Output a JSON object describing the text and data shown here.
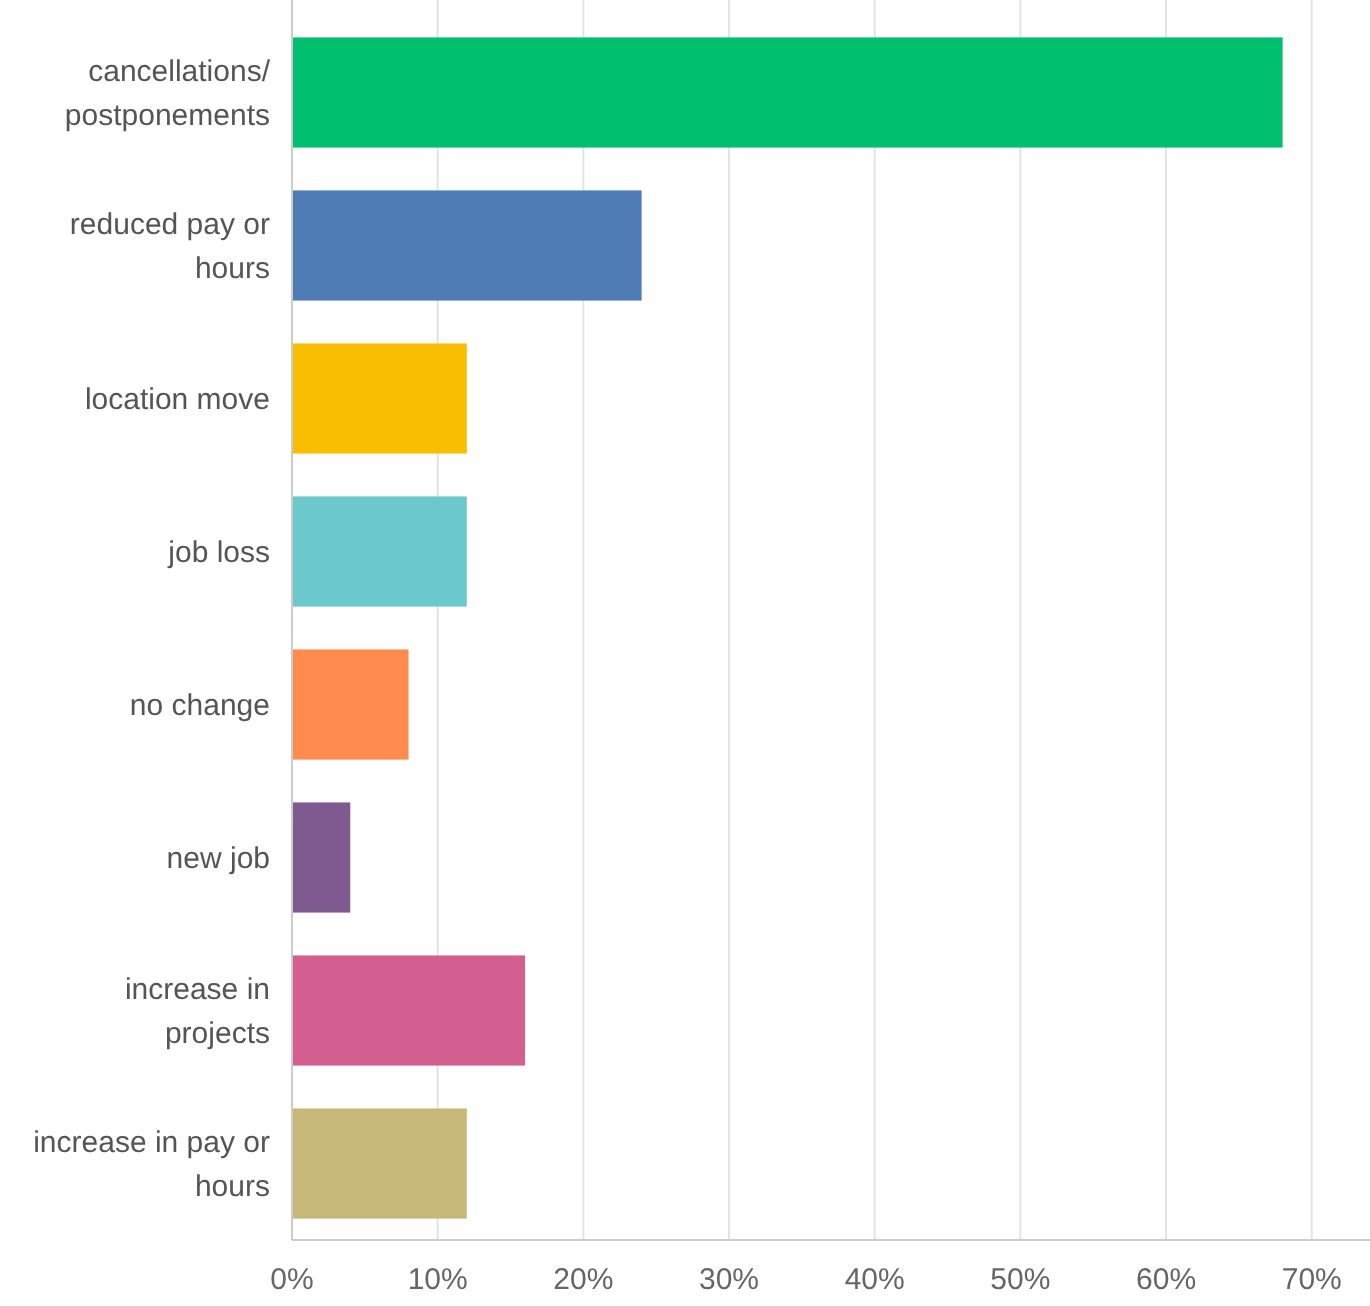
{
  "chart_data": {
    "type": "bar",
    "orientation": "horizontal",
    "categories": [
      "cancellations/ postponements",
      "reduced pay or hours",
      "location move",
      "job loss",
      "no change",
      "new job",
      "increase in projects",
      "increase in pay or hours"
    ],
    "values": [
      68,
      24,
      12,
      12,
      8,
      4,
      16,
      12
    ],
    "colors": [
      "#00bf6f",
      "#507cb6",
      "#f9be00",
      "#6bc8cd",
      "#ff8b4f",
      "#7f5a91",
      "#d25f90",
      "#c7b879"
    ],
    "xlim": [
      0,
      74
    ],
    "xticks": [
      {
        "value": 0,
        "label": "0%"
      },
      {
        "value": 10,
        "label": "10%"
      },
      {
        "value": 20,
        "label": "20%"
      },
      {
        "value": 30,
        "label": "30%"
      },
      {
        "value": 40,
        "label": "40%"
      },
      {
        "value": 50,
        "label": "50%"
      },
      {
        "value": 60,
        "label": "60%"
      },
      {
        "value": 70,
        "label": "70%"
      }
    ],
    "grid": "x"
  }
}
